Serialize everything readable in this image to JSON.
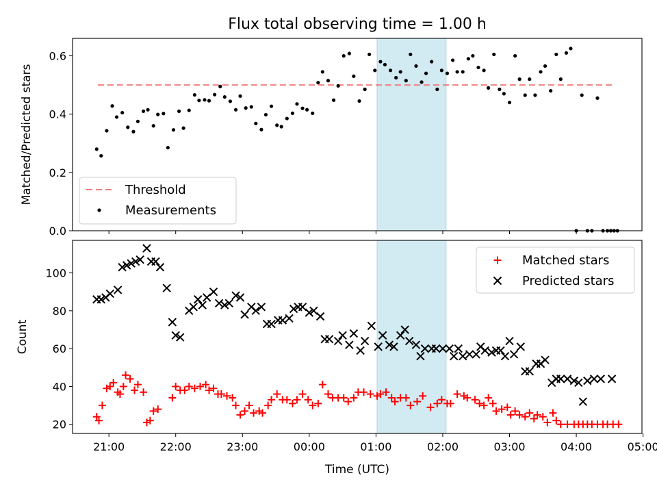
{
  "title": "Flux total observing time = 1.00 h",
  "colors": {
    "threshold": "#f08080",
    "shade": "#add8e6",
    "measurement": "#000000",
    "matched": "#ff0000",
    "predicted": "#000000"
  },
  "chart_data": [
    {
      "type": "scatter",
      "ylabel": "Matched/Predicted stars",
      "xlim": [
        -12.7,
        499
      ],
      "ylim": [
        0,
        0.66
      ],
      "yticks": [
        0.0,
        0.2,
        0.4,
        0.6
      ],
      "ytick_labels": [
        "0.0",
        "0.2",
        "0.4",
        "0.6"
      ],
      "grid": false,
      "legend_position": "lower-left",
      "legend": [
        "Threshold",
        "Measurements"
      ],
      "threshold": {
        "name": "Threshold",
        "value": 0.5,
        "x_start": 10,
        "x_end": 475
      },
      "highlight": {
        "x_start": 261,
        "x_end": 323
      },
      "series": [
        {
          "name": "Measurements",
          "marker": "dot",
          "x": [
            9,
            13,
            18,
            23,
            27,
            32,
            37,
            42,
            46,
            51,
            55,
            60,
            64,
            69,
            73,
            78,
            83,
            87,
            92,
            97,
            101,
            106,
            110,
            115,
            120,
            124,
            129,
            134,
            138,
            143,
            148,
            152,
            157,
            161,
            166,
            171,
            175,
            180,
            185,
            189,
            194,
            198,
            203,
            208,
            212,
            217,
            222,
            226,
            231,
            236,
            240,
            245,
            250,
            254,
            259,
            264,
            268,
            273,
            278,
            282,
            287,
            291,
            296,
            301,
            305,
            310,
            315,
            319,
            324,
            329,
            333,
            338,
            343,
            347,
            352,
            357,
            361,
            366,
            371,
            375,
            380,
            385,
            389,
            394,
            398,
            403,
            408,
            412,
            417,
            422,
            426,
            431,
            435,
            440,
            445,
            450,
            454,
            459,
            464,
            468,
            471,
            474,
            477
          ],
          "y": [
            0.28,
            0.257,
            0.343,
            0.428,
            0.39,
            0.405,
            0.355,
            0.34,
            0.375,
            0.41,
            0.415,
            0.36,
            0.399,
            0.402,
            0.285,
            0.346,
            0.41,
            0.352,
            0.413,
            0.466,
            0.447,
            0.449,
            0.446,
            0.467,
            0.495,
            0.459,
            0.444,
            0.415,
            0.462,
            0.421,
            0.425,
            0.368,
            0.347,
            0.398,
            0.427,
            0.362,
            0.357,
            0.385,
            0.403,
            0.435,
            0.42,
            0.415,
            0.403,
            0.508,
            0.545,
            0.515,
            0.448,
            0.497,
            0.6,
            0.608,
            0.53,
            0.445,
            0.485,
            0.605,
            0.55,
            0.58,
            0.57,
            0.55,
            0.525,
            0.545,
            0.515,
            0.605,
            0.565,
            0.51,
            0.54,
            0.58,
            0.485,
            0.55,
            0.54,
            0.585,
            0.545,
            0.545,
            0.59,
            0.6,
            0.56,
            0.55,
            0.49,
            0.605,
            0.485,
            0.47,
            0.44,
            0.6,
            0.52,
            0.465,
            0.52,
            0.465,
            0.545,
            0.565,
            0.48,
            0.605,
            0.52,
            0.61,
            0.625,
            0,
            0.465,
            0,
            0,
            0.455,
            0,
            0,
            0,
            0,
            0
          ]
        }
      ]
    },
    {
      "type": "scatter",
      "ylabel": "Count",
      "xlabel": "Time (UTC)",
      "xlim": [
        -12.7,
        499
      ],
      "ylim": [
        15.2,
        117.2
      ],
      "yticks": [
        20,
        40,
        60,
        80,
        100
      ],
      "ytick_labels": [
        "20",
        "40",
        "60",
        "80",
        "100"
      ],
      "xticks": [
        20,
        80,
        140,
        200,
        260,
        320,
        380,
        440,
        500
      ],
      "xtick_labels": [
        "21:00",
        "22:00",
        "23:00",
        "00:00",
        "01:00",
        "02:00",
        "03:00",
        "04:00",
        "05:00"
      ],
      "grid": false,
      "legend_position": "upper-right",
      "legend": [
        "Matched stars",
        "Predicted stars"
      ],
      "highlight": {
        "x_start": 261,
        "x_end": 323
      },
      "series": [
        {
          "name": "Matched stars",
          "marker": "plus",
          "x": [
            9,
            11,
            14,
            18,
            21,
            24,
            28,
            30,
            33,
            35,
            39,
            43,
            46,
            51,
            54,
            57,
            60,
            64,
            77,
            80,
            84,
            88,
            92,
            97,
            102,
            107,
            110,
            114,
            118,
            121,
            126,
            131,
            134,
            138,
            142,
            146,
            150,
            155,
            158,
            163,
            166,
            171,
            176,
            180,
            185,
            189,
            194,
            199,
            203,
            208,
            212,
            217,
            221,
            226,
            231,
            235,
            240,
            244,
            249,
            255,
            261,
            264,
            269,
            274,
            277,
            282,
            287,
            291,
            297,
            302,
            309,
            315,
            319,
            324,
            327,
            333,
            339,
            342,
            349,
            353,
            357,
            361,
            365,
            368,
            373,
            378,
            381,
            385,
            389,
            394,
            398,
            402,
            405,
            410,
            414,
            419,
            422,
            426,
            432,
            438,
            442,
            446,
            450,
            454,
            459,
            464,
            468,
            473,
            478
          ],
          "y": [
            24,
            22,
            30,
            39,
            40,
            42,
            37,
            36,
            40,
            46,
            44,
            38,
            41,
            37,
            21,
            22,
            27,
            28,
            34,
            40,
            38,
            38,
            40,
            39,
            40,
            41,
            38,
            39,
            36,
            36,
            35,
            34,
            30,
            25,
            27,
            30,
            26,
            27,
            26,
            30,
            33,
            36,
            33,
            33,
            31,
            33,
            36,
            33,
            30,
            31,
            41,
            36,
            34,
            34,
            34,
            32,
            34,
            37,
            37,
            36,
            35,
            36,
            37,
            34,
            32,
            34,
            34,
            30,
            32,
            35,
            29,
            31,
            33,
            31,
            31,
            36,
            35,
            34,
            33,
            31,
            30,
            34,
            31,
            27,
            28,
            29,
            25,
            27,
            25,
            24,
            26,
            23,
            25,
            24,
            21,
            26,
            22,
            20,
            20,
            20,
            20,
            20,
            20,
            20,
            20,
            20,
            20,
            20,
            20
          ]
        },
        {
          "name": "Predicted stars",
          "marker": "x",
          "x": [
            9,
            13,
            17,
            21,
            28,
            32,
            36,
            40,
            44,
            48,
            54,
            58,
            62,
            66,
            72,
            77,
            80,
            84,
            92,
            96,
            100,
            104,
            108,
            114,
            119,
            124,
            128,
            134,
            138,
            142,
            148,
            152,
            157,
            162,
            166,
            172,
            176,
            182,
            186,
            190,
            194,
            200,
            204,
            210,
            214,
            218,
            226,
            230,
            236,
            240,
            246,
            250,
            256,
            262,
            266,
            272,
            276,
            282,
            286,
            290,
            296,
            300,
            304,
            310,
            314,
            320,
            326,
            330,
            334,
            338,
            344,
            350,
            354,
            358,
            364,
            368,
            372,
            376,
            380,
            384,
            390,
            394,
            398,
            404,
            408,
            412,
            418,
            422,
            426,
            432,
            438,
            442,
            446,
            450,
            456,
            462,
            472
          ],
          "y": [
            86,
            86,
            87,
            89,
            91,
            103,
            104,
            105,
            106,
            107,
            113,
            106,
            106,
            103,
            92,
            74,
            67,
            66,
            80,
            82,
            86,
            83,
            87,
            90,
            84,
            83,
            84,
            88,
            87,
            78,
            82,
            80,
            82,
            73,
            73,
            75,
            75,
            76,
            81,
            82,
            82,
            79,
            80,
            77,
            65,
            65,
            64,
            67,
            62,
            68,
            59,
            64,
            72,
            61,
            67,
            62,
            61,
            67,
            70,
            64,
            62,
            56,
            60,
            60,
            60,
            60,
            60,
            56,
            60,
            56,
            57,
            57,
            61,
            59,
            58,
            59,
            59,
            56,
            64,
            57,
            61,
            48,
            48,
            52,
            52,
            54,
            42,
            44,
            44,
            44,
            43,
            42,
            32,
            43,
            44,
            44,
            44
          ]
        }
      ]
    }
  ]
}
